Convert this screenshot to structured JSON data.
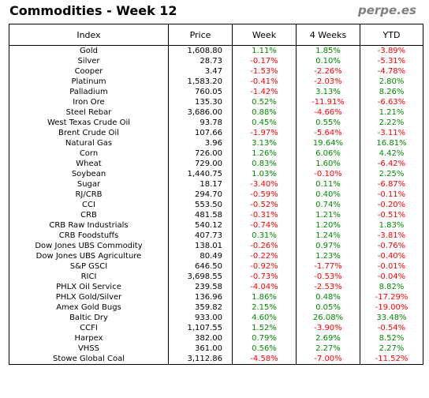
{
  "header": {
    "title": "Commodities - Week 12",
    "brand": "perpe.es"
  },
  "columns": [
    "Index",
    "Price",
    "Week",
    "4 Weeks",
    "YTD"
  ],
  "rows": [
    {
      "index": "Gold",
      "price": "1,608.80",
      "week": "1.11%",
      "weeks4": "1.85%",
      "ytd": "-3.89%"
    },
    {
      "index": "Silver",
      "price": "28.73",
      "week": "-0.17%",
      "weeks4": "0.10%",
      "ytd": "-5.31%"
    },
    {
      "index": "Cooper",
      "price": "3.47",
      "week": "-1.53%",
      "weeks4": "-2.26%",
      "ytd": "-4.78%"
    },
    {
      "index": "Platinum",
      "price": "1,583.20",
      "week": "-0.41%",
      "weeks4": "-2.03%",
      "ytd": "2.80%"
    },
    {
      "index": "Palladium",
      "price": "760.05",
      "week": "-1.42%",
      "weeks4": "3.13%",
      "ytd": "8.26%"
    },
    {
      "index": "Iron Ore",
      "price": "135.30",
      "week": "0.52%",
      "weeks4": "-11.91%",
      "ytd": "-6.63%"
    },
    {
      "index": "Steel Rebar",
      "price": "3,686.00",
      "week": "0.88%",
      "weeks4": "-4.66%",
      "ytd": "1.21%"
    },
    {
      "index": "West Texas Crude Oil",
      "price": "93.78",
      "week": "0.45%",
      "weeks4": "0.55%",
      "ytd": "2.22%"
    },
    {
      "index": "Brent Crude Oil",
      "price": "107.66",
      "week": "-1.97%",
      "weeks4": "-5.64%",
      "ytd": "-3.11%"
    },
    {
      "index": "Natural Gas",
      "price": "3.96",
      "week": "3.13%",
      "weeks4": "19.64%",
      "ytd": "16.81%"
    },
    {
      "index": "Corn",
      "price": "726.00",
      "week": "1.26%",
      "weeks4": "6.06%",
      "ytd": "4.42%"
    },
    {
      "index": "Wheat",
      "price": "729.00",
      "week": "0.83%",
      "weeks4": "1.60%",
      "ytd": "-6.42%"
    },
    {
      "index": "Soybean",
      "price": "1,440.75",
      "week": "1.03%",
      "weeks4": "-0.10%",
      "ytd": "2.25%"
    },
    {
      "index": "Sugar",
      "price": "18.17",
      "week": "-3.40%",
      "weeks4": "0.11%",
      "ytd": "-6.87%"
    },
    {
      "index": "RJ/CRB",
      "price": "294.70",
      "week": "-0.59%",
      "weeks4": "0.40%",
      "ytd": "-0.11%"
    },
    {
      "index": "CCI",
      "price": "553.50",
      "week": "-0.52%",
      "weeks4": "0.74%",
      "ytd": "-0.20%"
    },
    {
      "index": "CRB",
      "price": "481.58",
      "week": "-0.31%",
      "weeks4": "1.21%",
      "ytd": "-0.51%"
    },
    {
      "index": "CRB Raw Industrials",
      "price": "540.12",
      "week": "-0.74%",
      "weeks4": "1.20%",
      "ytd": "1.83%"
    },
    {
      "index": "CRB Foodstuffs",
      "price": "407.73",
      "week": "0.31%",
      "weeks4": "1.24%",
      "ytd": "-3.81%"
    },
    {
      "index": "Dow Jones UBS Commodity",
      "price": "138.01",
      "week": "-0.26%",
      "weeks4": "0.97%",
      "ytd": "-0.76%"
    },
    {
      "index": "Dow Jones UBS Agriculture",
      "price": "80.49",
      "week": "-0.22%",
      "weeks4": "1.23%",
      "ytd": "-0.40%"
    },
    {
      "index": "S&P GSCI",
      "price": "646.50",
      "week": "-0.92%",
      "weeks4": "-1.77%",
      "ytd": "-0.01%"
    },
    {
      "index": "RICI",
      "price": "3,698.55",
      "week": "-0.73%",
      "weeks4": "-0.53%",
      "ytd": "-0.04%"
    },
    {
      "index": "PHLX Oil Service",
      "price": "239.58",
      "week": "-4.04%",
      "weeks4": "-2.53%",
      "ytd": "8.82%"
    },
    {
      "index": "PHLX Gold/Silver",
      "price": "136.96",
      "week": "1.86%",
      "weeks4": "0.48%",
      "ytd": "-17.29%"
    },
    {
      "index": "Amex Gold Bugs",
      "price": "359.82",
      "week": "2.15%",
      "weeks4": "0.05%",
      "ytd": "-19.00%"
    },
    {
      "index": "Baltic Dry",
      "price": "933.00",
      "week": "4.60%",
      "weeks4": "26.08%",
      "ytd": "33.48%"
    },
    {
      "index": "CCFI",
      "price": "1,107.55",
      "week": "1.52%",
      "weeks4": "-3.90%",
      "ytd": "-0.54%"
    },
    {
      "index": "Harpex",
      "price": "382.00",
      "week": "0.79%",
      "weeks4": "2.69%",
      "ytd": "8.52%"
    },
    {
      "index": "VHSS",
      "price": "361.00",
      "week": "0.56%",
      "weeks4": "2.27%",
      "ytd": "2.27%"
    },
    {
      "index": "Stowe Global Coal",
      "price": "3,112.86",
      "week": "-4.58%",
      "weeks4": "-7.00%",
      "ytd": "-11.52%"
    }
  ],
  "colors": {
    "positive": "#008a00",
    "negative": "#ff0000",
    "brand": "#7f7f7f"
  }
}
